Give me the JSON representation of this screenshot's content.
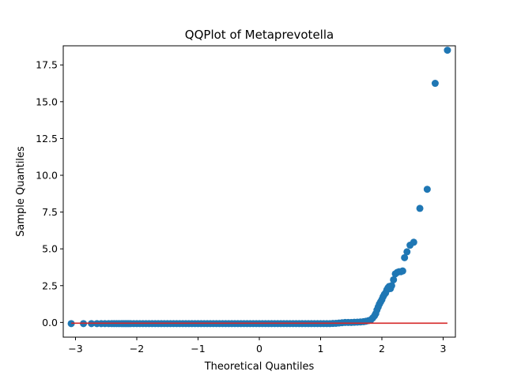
{
  "chart_data": {
    "type": "scatter",
    "title": "QQPlot of Metaprevotella",
    "xlabel": "Theoretical Quantiles",
    "ylabel": "Sample Quantiles",
    "xlim": [
      -3.2,
      3.2
    ],
    "ylim": [
      -1.0,
      18.8
    ],
    "x_ticks": [
      -3,
      -2,
      -1,
      0,
      1,
      2,
      3
    ],
    "x_tick_labels": [
      "−3",
      "−2",
      "−1",
      "0",
      "1",
      "2",
      "3"
    ],
    "y_ticks": [
      0.0,
      2.5,
      5.0,
      7.5,
      10.0,
      12.5,
      15.0,
      17.5
    ],
    "y_tick_labels": [
      "0.0",
      "2.5",
      "5.0",
      "7.5",
      "10.0",
      "12.5",
      "15.0",
      "17.5"
    ],
    "grid": false,
    "legend": "none",
    "marker_color": "#1f77b4",
    "line_color": "#d62728",
    "reference_line": {
      "x": [
        -3.07,
        3.07
      ],
      "y": [
        -0.05,
        -0.05
      ]
    },
    "points": {
      "x": [
        -3.07,
        -2.87,
        -2.74,
        -2.65,
        -2.58,
        -2.52,
        -2.46,
        -2.41,
        -2.37,
        -2.33,
        -2.29,
        -2.25,
        -2.22,
        -2.19,
        -2.16,
        -2.13,
        -2.1,
        -2.05,
        -2.0,
        -1.95,
        -1.9,
        -1.85,
        -1.8,
        -1.75,
        -1.7,
        -1.65,
        -1.6,
        -1.55,
        -1.5,
        -1.45,
        -1.4,
        -1.35,
        -1.3,
        -1.25,
        -1.2,
        -1.15,
        -1.1,
        -1.05,
        -1.0,
        -0.95,
        -0.9,
        -0.85,
        -0.8,
        -0.75,
        -0.7,
        -0.65,
        -0.6,
        -0.55,
        -0.5,
        -0.45,
        -0.4,
        -0.35,
        -0.3,
        -0.25,
        -0.2,
        -0.15,
        -0.1,
        -0.05,
        0.0,
        0.05,
        0.1,
        0.15,
        0.2,
        0.25,
        0.3,
        0.35,
        0.4,
        0.45,
        0.5,
        0.55,
        0.6,
        0.65,
        0.7,
        0.75,
        0.8,
        0.85,
        0.9,
        0.95,
        1.0,
        1.05,
        1.1,
        1.15,
        1.2,
        1.25,
        1.3,
        1.35,
        1.4,
        1.45,
        1.5,
        1.55,
        1.6,
        1.65,
        1.7,
        1.74,
        1.78,
        1.82,
        1.85,
        1.88,
        1.9,
        1.92,
        1.94,
        1.96,
        1.98,
        2.0,
        2.02,
        2.04,
        2.06,
        2.08,
        2.1,
        2.12,
        2.14,
        2.16,
        2.19,
        2.22,
        2.25,
        2.28,
        2.31,
        2.34,
        2.37,
        2.41,
        2.46,
        2.52,
        2.62,
        2.74,
        2.87,
        3.07
      ],
      "y": [
        -0.08,
        -0.08,
        -0.08,
        -0.08,
        -0.08,
        -0.08,
        -0.08,
        -0.08,
        -0.08,
        -0.08,
        -0.08,
        -0.08,
        -0.08,
        -0.08,
        -0.08,
        -0.08,
        -0.08,
        -0.08,
        -0.08,
        -0.08,
        -0.08,
        -0.08,
        -0.08,
        -0.08,
        -0.08,
        -0.08,
        -0.08,
        -0.08,
        -0.08,
        -0.08,
        -0.08,
        -0.08,
        -0.08,
        -0.08,
        -0.08,
        -0.08,
        -0.08,
        -0.08,
        -0.08,
        -0.08,
        -0.08,
        -0.08,
        -0.08,
        -0.08,
        -0.08,
        -0.08,
        -0.08,
        -0.08,
        -0.08,
        -0.08,
        -0.08,
        -0.08,
        -0.08,
        -0.08,
        -0.08,
        -0.08,
        -0.08,
        -0.08,
        -0.08,
        -0.08,
        -0.08,
        -0.08,
        -0.08,
        -0.08,
        -0.08,
        -0.08,
        -0.08,
        -0.08,
        -0.08,
        -0.08,
        -0.08,
        -0.08,
        -0.08,
        -0.08,
        -0.08,
        -0.08,
        -0.08,
        -0.08,
        -0.08,
        -0.08,
        -0.08,
        -0.08,
        -0.07,
        -0.06,
        -0.04,
        -0.02,
        0.0,
        0.0,
        0.0,
        0.01,
        0.02,
        0.03,
        0.05,
        0.08,
        0.12,
        0.18,
        0.3,
        0.45,
        0.6,
        0.85,
        1.05,
        1.25,
        1.4,
        1.55,
        1.75,
        1.9,
        2.0,
        2.2,
        2.35,
        2.45,
        2.3,
        2.5,
        2.9,
        3.3,
        3.4,
        3.45,
        3.45,
        3.5,
        4.4,
        4.8,
        5.25,
        5.45,
        7.75,
        9.05,
        16.25,
        18.5
      ]
    }
  }
}
